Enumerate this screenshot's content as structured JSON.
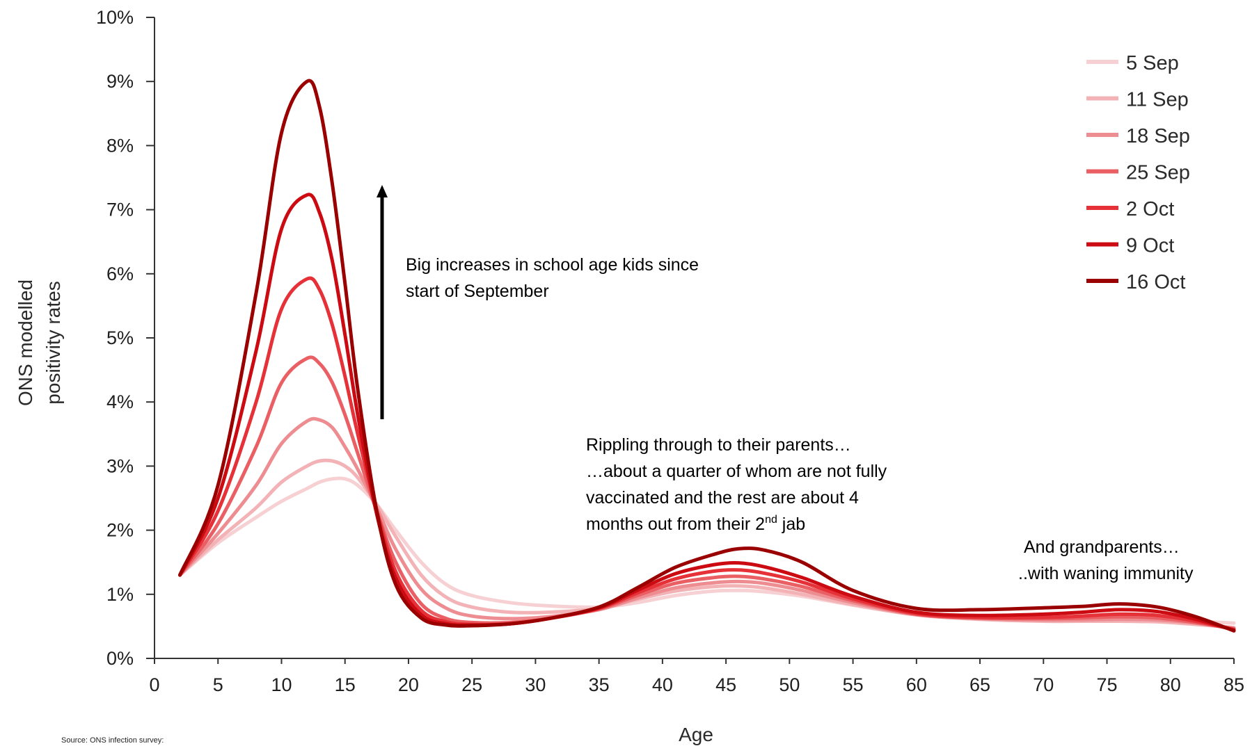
{
  "chart_data": {
    "type": "line",
    "title": "",
    "xlabel": "Age",
    "ylabel_lines": [
      "ONS modelled",
      "positivity rates"
    ],
    "xlim": [
      0,
      85
    ],
    "ylim": [
      0,
      10
    ],
    "x_ticks": [
      "0",
      "5",
      "10",
      "15",
      "20",
      "25",
      "30",
      "35",
      "40",
      "45",
      "50",
      "55",
      "60",
      "65",
      "70",
      "75",
      "80",
      "85"
    ],
    "y_ticks": [
      "0%",
      "1%",
      "2%",
      "3%",
      "4%",
      "5%",
      "6%",
      "7%",
      "8%",
      "9%",
      "10%"
    ],
    "grid": false,
    "legend_position": "top-right",
    "x": [
      2,
      5,
      8,
      10,
      12,
      13,
      14,
      15,
      16,
      17.5,
      19,
      21,
      23,
      25,
      28,
      31,
      35,
      38,
      41,
      44,
      46,
      48,
      51,
      55,
      60,
      65,
      70,
      73,
      76,
      79,
      82,
      85
    ],
    "series": [
      {
        "name": "5 Sep",
        "color": "#f6d0d2",
        "values": [
          1.3,
          1.8,
          2.2,
          2.45,
          2.65,
          2.75,
          2.8,
          2.8,
          2.7,
          2.4,
          2.0,
          1.5,
          1.15,
          0.98,
          0.87,
          0.82,
          0.8,
          0.87,
          0.98,
          1.05,
          1.06,
          1.04,
          0.97,
          0.83,
          0.68,
          0.62,
          0.6,
          0.59,
          0.6,
          0.6,
          0.58,
          0.55
        ]
      },
      {
        "name": "11 Sep",
        "color": "#f3b3b6",
        "values": [
          1.3,
          1.85,
          2.35,
          2.75,
          3.0,
          3.08,
          3.08,
          3.0,
          2.82,
          2.4,
          1.9,
          1.3,
          0.95,
          0.8,
          0.72,
          0.72,
          0.78,
          0.92,
          1.05,
          1.12,
          1.13,
          1.1,
          1.0,
          0.84,
          0.68,
          0.61,
          0.58,
          0.58,
          0.58,
          0.57,
          0.53,
          0.48
        ]
      },
      {
        "name": "18 Sep",
        "color": "#ee8d91",
        "values": [
          1.3,
          1.95,
          2.7,
          3.35,
          3.7,
          3.72,
          3.6,
          3.3,
          2.95,
          2.35,
          1.7,
          1.08,
          0.78,
          0.66,
          0.62,
          0.65,
          0.76,
          0.94,
          1.1,
          1.18,
          1.2,
          1.17,
          1.06,
          0.87,
          0.68,
          0.62,
          0.6,
          0.6,
          0.61,
          0.6,
          0.55,
          0.47
        ]
      },
      {
        "name": "25 Sep",
        "color": "#ea5f64",
        "values": [
          1.3,
          2.1,
          3.3,
          4.3,
          4.68,
          4.6,
          4.3,
          3.8,
          3.2,
          2.3,
          1.5,
          0.85,
          0.62,
          0.56,
          0.56,
          0.62,
          0.77,
          0.98,
          1.17,
          1.26,
          1.28,
          1.24,
          1.12,
          0.9,
          0.69,
          0.63,
          0.62,
          0.63,
          0.65,
          0.63,
          0.56,
          0.46
        ]
      },
      {
        "name": "2 Oct",
        "color": "#e53137",
        "values": [
          1.3,
          2.3,
          4.0,
          5.45,
          5.92,
          5.75,
          5.2,
          4.4,
          3.5,
          2.3,
          1.35,
          0.75,
          0.57,
          0.53,
          0.54,
          0.62,
          0.78,
          1.02,
          1.24,
          1.36,
          1.38,
          1.33,
          1.19,
          0.93,
          0.7,
          0.64,
          0.64,
          0.66,
          0.69,
          0.67,
          0.58,
          0.45
        ]
      },
      {
        "name": "9 Oct",
        "color": "#cc0a12",
        "values": [
          1.3,
          2.5,
          4.8,
          6.7,
          7.23,
          6.95,
          6.2,
          5.05,
          3.8,
          2.25,
          1.25,
          0.68,
          0.54,
          0.52,
          0.54,
          0.62,
          0.79,
          1.06,
          1.32,
          1.46,
          1.49,
          1.43,
          1.26,
          0.97,
          0.72,
          0.67,
          0.69,
          0.72,
          0.76,
          0.73,
          0.61,
          0.44
        ]
      },
      {
        "name": "16 Oct",
        "color": "#9a0000",
        "values": [
          1.3,
          2.7,
          5.7,
          8.2,
          9.0,
          8.6,
          7.4,
          5.85,
          4.2,
          2.3,
          1.15,
          0.63,
          0.52,
          0.51,
          0.54,
          0.62,
          0.8,
          1.1,
          1.42,
          1.62,
          1.71,
          1.69,
          1.5,
          1.06,
          0.78,
          0.76,
          0.79,
          0.81,
          0.85,
          0.8,
          0.65,
          0.43
        ]
      }
    ],
    "annotations": {
      "school": [
        "Big increases in school age kids since",
        "start of September"
      ],
      "parents_l1": "Rippling through to their parents…",
      "parents_l2": "…about a quarter of whom are not fully",
      "parents_l3": "vaccinated and the rest are about 4",
      "parents_l4_a": "months out from their 2",
      "parents_l4_sup": "nd",
      "parents_l4_b": " jab",
      "grandparents": [
        "And grandparents…",
        "..with waning immunity"
      ]
    },
    "source": "Source: ONS infection survey:"
  }
}
